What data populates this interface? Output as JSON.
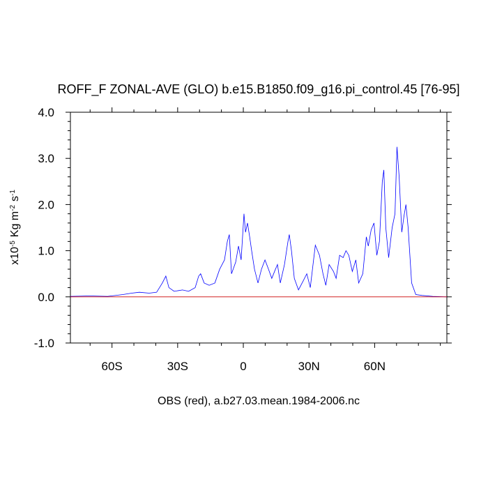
{
  "chart_data": {
    "type": "line",
    "title": "ROFF_F ZONAL-AVE (GLO) b.e15.B1850.f09_g16.pi_control.45 [76-95]",
    "x_label": "OBS (red), a.b27.03.mean.1984-2006.nc",
    "y_label_parts": [
      {
        "text": "x10",
        "sup": "-5"
      },
      {
        "text": "Kg m",
        "sup": "-2"
      },
      {
        "text": "s",
        "sup": "-1"
      }
    ],
    "xlim": [
      -79,
      93
    ],
    "ylim": [
      -1,
      4
    ],
    "xticks": [
      {
        "value": -60,
        "label": "60S"
      },
      {
        "value": -30,
        "label": "30S"
      },
      0,
      {
        "value": 30,
        "label": "30N"
      },
      {
        "value": 60,
        "label": "60N"
      }
    ],
    "xminorticks": [
      -70,
      -50,
      -40,
      -20,
      -10,
      10,
      20,
      40,
      50,
      70,
      80,
      90
    ],
    "yticks": [
      {
        "value": -1,
        "label": "-1.0"
      },
      {
        "value": 0,
        "label": "0.0"
      },
      {
        "value": 1,
        "label": "1.0"
      },
      {
        "value": 2,
        "label": "2.0"
      },
      {
        "value": 3,
        "label": "3.0"
      },
      {
        "value": 4,
        "label": "4.0"
      }
    ],
    "yminorticks": [
      -0.8,
      -0.6,
      -0.4,
      -0.2,
      0.2,
      0.4,
      0.6,
      0.8,
      1.2,
      1.4,
      1.6,
      1.8,
      2.2,
      2.4,
      2.6,
      2.8,
      3.2,
      3.4,
      3.6,
      3.8
    ],
    "series": [
      {
        "color": "#0000ff",
        "x": [
          -79,
          -70,
          -62,
          -55,
          -51,
          -47.5,
          -43,
          -39.6,
          -37,
          -35.4,
          -34,
          -31.6,
          -27.8,
          -25,
          -22,
          -20.4,
          -19.5,
          -17.9,
          -15.6,
          -13,
          -10.8,
          -8.6,
          -7.3,
          -6.4,
          -5.4,
          -3.5,
          -2.2,
          -1,
          0.3,
          1,
          1.9,
          2.9,
          3.8,
          5.1,
          6.7,
          8.3,
          9.9,
          11.5,
          13,
          14.7,
          15.6,
          16.9,
          18.8,
          20.4,
          21,
          22,
          23.3,
          25.2,
          27.4,
          29,
          30.6,
          32.9,
          34.8,
          36.4,
          37.7,
          39.2,
          41.2,
          42.4,
          44,
          45.6,
          46.9,
          48.2,
          49.8,
          51.4,
          52.7,
          54.6,
          56.2,
          57.1,
          58.4,
          59.7,
          61,
          62.2,
          63.5,
          64.2,
          65.1,
          66.4,
          68,
          69.3,
          70.2,
          71.2,
          72.4,
          73.4,
          74.3,
          75.3,
          76.9,
          78.8,
          81.7,
          86.5,
          93
        ],
        "values": [
          0.01,
          0.02,
          0.01,
          0.05,
          0.08,
          0.1,
          0.08,
          0.1,
          0.3,
          0.45,
          0.2,
          0.12,
          0.15,
          0.12,
          0.2,
          0.45,
          0.5,
          0.3,
          0.25,
          0.3,
          0.6,
          0.8,
          1.2,
          1.35,
          0.5,
          0.75,
          1.1,
          0.8,
          1.8,
          1.4,
          1.6,
          1.3,
          1.0,
          0.6,
          0.3,
          0.6,
          0.8,
          0.6,
          0.4,
          0.6,
          0.7,
          0.3,
          0.7,
          1.2,
          1.35,
          1.0,
          0.4,
          0.15,
          0.35,
          0.5,
          0.2,
          1.12,
          0.9,
          0.5,
          0.25,
          0.7,
          0.55,
          0.4,
          0.9,
          0.85,
          1.0,
          0.9,
          0.55,
          0.8,
          0.3,
          0.5,
          1.3,
          1.1,
          1.45,
          1.6,
          0.9,
          1.2,
          2.5,
          2.75,
          1.5,
          0.85,
          1.5,
          1.8,
          3.25,
          2.6,
          1.4,
          1.75,
          2.0,
          1.5,
          0.3,
          0.05,
          0.03,
          0.01,
          0.0
        ]
      },
      {
        "color": "#cc0000",
        "x": [
          -79,
          93
        ],
        "values": [
          0,
          0
        ]
      }
    ]
  }
}
